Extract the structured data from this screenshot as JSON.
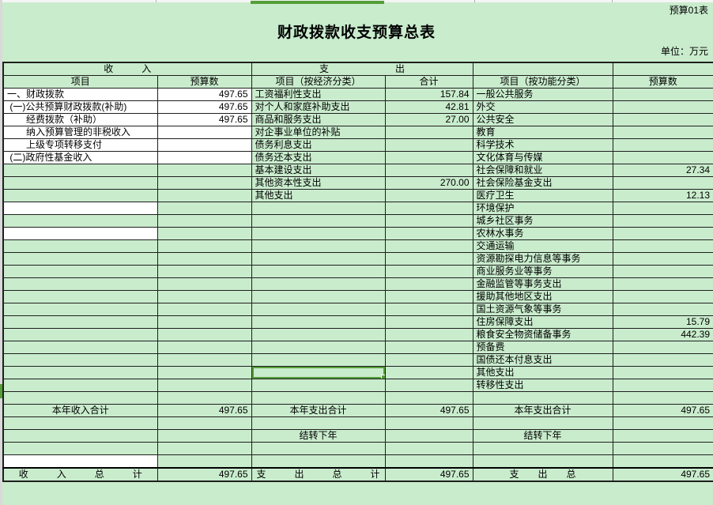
{
  "page": {
    "sheet_label": "预算01表",
    "title": "财政拨款收支预算总表",
    "unit_note": "单位：万元"
  },
  "colors": {
    "sheet_green": "#c9eccd",
    "cell_white": "#ffffff",
    "selection_green": "#569e38",
    "grid_border": "#1f1f1f",
    "page_gray": "#d9d9d9"
  },
  "header": {
    "income_group": "收　　　入",
    "expense_group": "支　　　　　　　出",
    "cols": [
      "项目",
      "预算数",
      "项目（按经济分类）",
      "合计",
      "项目（按功能分类）",
      "预算数"
    ]
  },
  "rows": [
    {
      "cells": [
        "一、财政拨款",
        "497.65",
        "工资福利性支出",
        "157.84",
        "一般公共服务",
        ""
      ],
      "white": [
        0,
        1
      ]
    },
    {
      "cells": [
        " (一)公共预算财政拨款(补助)",
        "497.65",
        "对个人和家庭补助支出",
        "42.81",
        "外交",
        ""
      ],
      "white": [
        0,
        1
      ]
    },
    {
      "cells": [
        "　　经费拨款（补助）",
        "497.65",
        "商品和服务支出",
        "27.00",
        "公共安全",
        ""
      ],
      "white": [
        0,
        1
      ]
    },
    {
      "cells": [
        "　　纳入预算管理的非税收入",
        "",
        "对企事业单位的补贴",
        "",
        "教育",
        ""
      ],
      "white": [
        0,
        1
      ]
    },
    {
      "cells": [
        "　　上级专项转移支付",
        "",
        "债务利息支出",
        "",
        "科学技术",
        ""
      ],
      "white": [
        0,
        1
      ]
    },
    {
      "cells": [
        " (二)政府性基金收入",
        "",
        "债务还本支出",
        "",
        "文化体育与传媒",
        ""
      ],
      "white": [
        0,
        1
      ]
    },
    {
      "cells": [
        "",
        "",
        "基本建设支出",
        "",
        "社会保障和就业",
        "27.34"
      ]
    },
    {
      "cells": [
        "",
        "",
        "其他资本性支出",
        "270.00",
        "社会保险基金支出",
        ""
      ]
    },
    {
      "cells": [
        "",
        "",
        "其他支出",
        "",
        "医疗卫生",
        "12.13"
      ]
    },
    {
      "cells": [
        "",
        "",
        "",
        "",
        "环境保护",
        ""
      ],
      "white": [
        0
      ]
    },
    {
      "cells": [
        "",
        "",
        "",
        "",
        "城乡社区事务",
        ""
      ]
    },
    {
      "cells": [
        "",
        "",
        "",
        "",
        "农林水事务",
        ""
      ],
      "white": [
        0
      ]
    },
    {
      "cells": [
        "",
        "",
        "",
        "",
        "交通运输",
        ""
      ]
    },
    {
      "cells": [
        "",
        "",
        "",
        "",
        "资源勘探电力信息等事务",
        ""
      ]
    },
    {
      "cells": [
        "",
        "",
        "",
        "",
        "商业服务业等事务",
        ""
      ]
    },
    {
      "cells": [
        "",
        "",
        "",
        "",
        "金融监管等事务支出",
        ""
      ]
    },
    {
      "cells": [
        "",
        "",
        "",
        "",
        "援助其他地区支出",
        ""
      ]
    },
    {
      "cells": [
        "",
        "",
        "",
        "",
        "国土资源气象等事务",
        ""
      ]
    },
    {
      "cells": [
        "",
        "",
        "",
        "",
        "住房保障支出",
        "15.79"
      ]
    },
    {
      "cells": [
        "",
        "",
        "",
        "",
        "粮食安全物资储备事务",
        "442.39"
      ]
    },
    {
      "cells": [
        "",
        "",
        "",
        "",
        "预备费",
        ""
      ]
    },
    {
      "cells": [
        "",
        "",
        "",
        "",
        "国债还本付息支出",
        ""
      ]
    },
    {
      "cells": [
        "",
        "",
        "",
        "",
        "其他支出",
        ""
      ],
      "selected": 2
    },
    {
      "cells": [
        "",
        "",
        "",
        "",
        "转移性支出",
        ""
      ]
    },
    {
      "cells": [
        "",
        "",
        "",
        "",
        "",
        ""
      ]
    },
    {
      "cells": [
        "本年收入合计",
        "497.65",
        "本年支出合计",
        "497.65",
        "本年支出合计",
        "497.65"
      ],
      "center": true
    },
    {
      "cells": [
        "",
        "",
        "",
        "",
        "",
        ""
      ]
    },
    {
      "cells": [
        "",
        "",
        "结转下年",
        "",
        "结转下年",
        ""
      ],
      "center": true
    },
    {
      "cells": [
        "",
        "",
        "",
        "",
        "",
        ""
      ]
    },
    {
      "cells": [
        "",
        "",
        "",
        "",
        "",
        ""
      ],
      "white": [
        0
      ]
    },
    {
      "cells": [
        "收　　　入　　　总　　　计",
        "497.65",
        "支　　　出　　　总　　　计",
        "497.65",
        "支　　出　　总",
        "497.65"
      ],
      "center": true,
      "thick_top": true
    }
  ]
}
